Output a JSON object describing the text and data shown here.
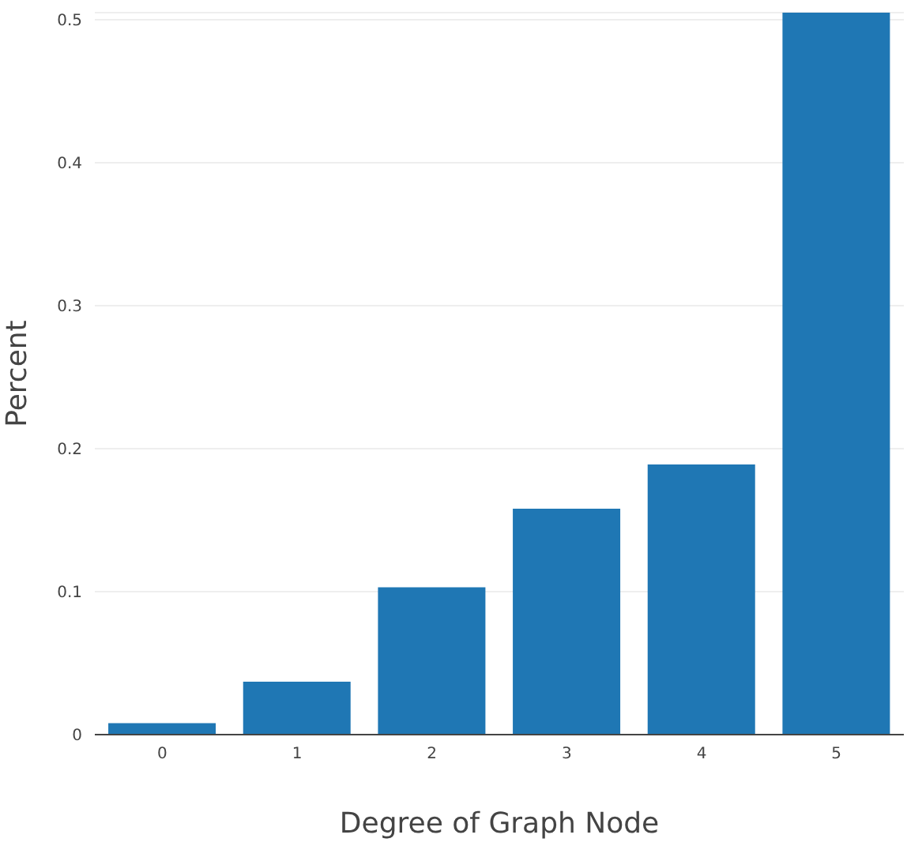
{
  "chart_data": {
    "type": "bar",
    "xlabel": "Degree of Graph Node",
    "ylabel": "Percent",
    "categories": [
      "0",
      "1",
      "2",
      "3",
      "4",
      "5"
    ],
    "values": [
      0.008,
      0.037,
      0.103,
      0.158,
      0.189,
      0.505
    ],
    "color": "#1f77b4",
    "ylim": [
      0,
      0.505
    ],
    "yticks": [
      0,
      0.1,
      0.2,
      0.3,
      0.4,
      0.5
    ],
    "grid": "y"
  }
}
